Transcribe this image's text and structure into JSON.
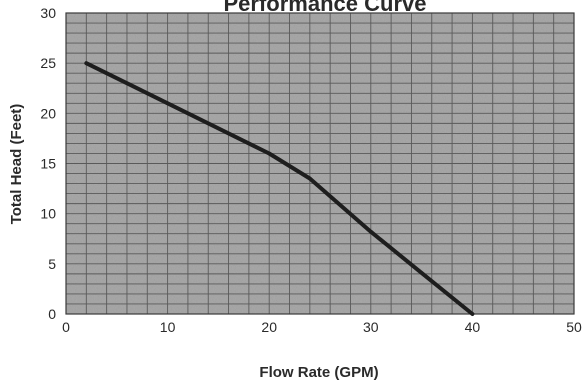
{
  "chart_data": {
    "type": "line",
    "title": "Performance Curve",
    "xlabel": "Flow Rate (GPM)",
    "ylabel": "Total Head (Feet)",
    "xlim": [
      0,
      50
    ],
    "ylim": [
      0,
      30
    ],
    "x_ticks": [
      "0",
      "10",
      "20",
      "30",
      "40",
      "50"
    ],
    "y_ticks": [
      "0",
      "5",
      "10",
      "15",
      "20",
      "25",
      "30"
    ],
    "grid": true,
    "series": [
      {
        "x": [
          2,
          10,
          20,
          24,
          30,
          35,
          40
        ],
        "y": [
          25,
          21,
          16,
          13.5,
          8.2,
          4.1,
          0
        ]
      }
    ],
    "colors": {
      "plot_background": "#a9a9a9",
      "grid_line": "#5a5a5a",
      "curve": "#1e1e1e",
      "text": "#2a2a2a"
    }
  }
}
